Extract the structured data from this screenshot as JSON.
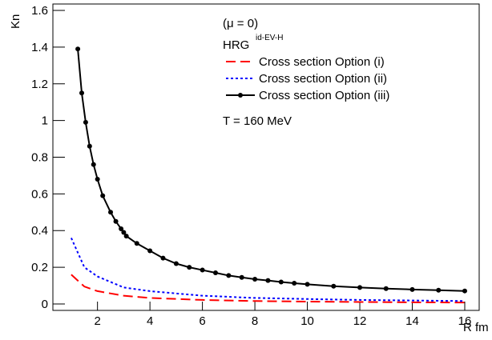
{
  "chart_data": {
    "type": "line",
    "x_label": "R fm",
    "y_label": "Kn",
    "xlim": [
      0.3,
      16.55
    ],
    "ylim": [
      -0.035,
      1.635
    ],
    "xticks": [
      2,
      4,
      6,
      8,
      10,
      12,
      14,
      16
    ],
    "yticks": [
      0,
      0.2,
      0.4,
      0.6,
      0.8,
      1,
      1.2,
      1.4,
      1.6
    ],
    "annotations": [
      "(μ = 0)",
      "T = 160 MeV"
    ],
    "legend_header": "HRG",
    "legend_header_superscript": "id-EV-H",
    "series": [
      {
        "name": "Cross section Option  (i)",
        "color": "#ff0000",
        "line_style": "dashed",
        "markers": false,
        "x": [
          1,
          1.5,
          2,
          3,
          4,
          6,
          8,
          10,
          12,
          14,
          16
        ],
        "values": [
          0.16,
          0.095,
          0.07,
          0.045,
          0.033,
          0.022,
          0.016,
          0.013,
          0.011,
          0.009,
          0.008
        ]
      },
      {
        "name": "Cross section Option  (ii)",
        "color": "#0000ff",
        "line_style": "dotted",
        "markers": false,
        "x": [
          1,
          1.5,
          2,
          3,
          4,
          6,
          8,
          10,
          12,
          14,
          16
        ],
        "values": [
          0.36,
          0.2,
          0.15,
          0.09,
          0.07,
          0.045,
          0.033,
          0.027,
          0.022,
          0.019,
          0.016
        ]
      },
      {
        "name": "Cross section Option  (iii)",
        "color": "#000000",
        "line_style": "solid",
        "markers": true,
        "x": [
          1.25,
          1.4,
          1.55,
          1.7,
          1.85,
          2.0,
          2.2,
          2.5,
          2.7,
          2.9,
          3.0,
          3.1,
          3.5,
          4,
          4.5,
          5,
          5.5,
          6,
          6.5,
          7,
          7.5,
          8,
          8.5,
          9,
          9.5,
          10,
          11,
          12,
          13,
          14,
          15,
          16
        ],
        "values": [
          1.39,
          1.15,
          0.99,
          0.86,
          0.76,
          0.68,
          0.59,
          0.5,
          0.45,
          0.41,
          0.39,
          0.37,
          0.33,
          0.29,
          0.25,
          0.22,
          0.2,
          0.185,
          0.17,
          0.155,
          0.145,
          0.135,
          0.128,
          0.12,
          0.113,
          0.107,
          0.097,
          0.09,
          0.084,
          0.079,
          0.075,
          0.071
        ]
      }
    ]
  }
}
